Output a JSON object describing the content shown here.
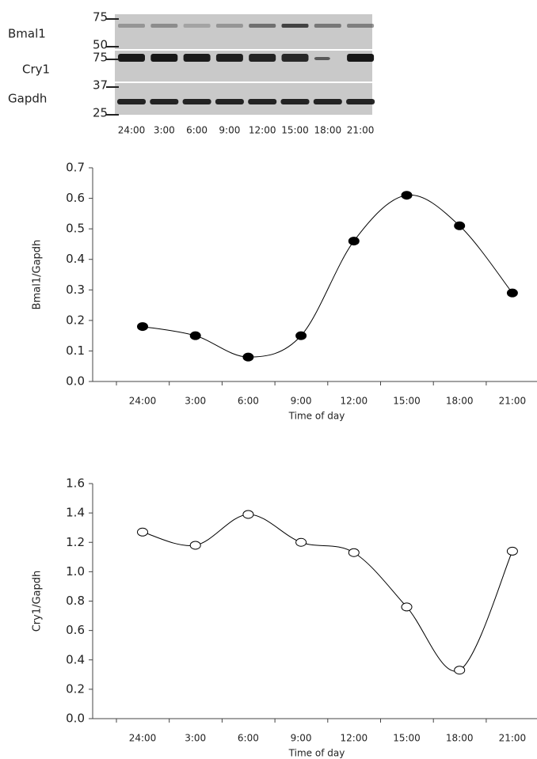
{
  "blot": {
    "proteins": [
      "Bmal1",
      "Cry1",
      "Gapdh"
    ],
    "markers": [
      75,
      50,
      75,
      37,
      25
    ],
    "lanes": [
      "24:00",
      "3:00",
      "6:00",
      "9:00",
      "12:00",
      "15:00",
      "18:00",
      "21:00"
    ]
  },
  "chart_data": [
    {
      "type": "line",
      "y_label": "Bmal1/Gapdh",
      "x_label": "Time of day",
      "categories": [
        "24:00",
        "3:00",
        "6:00",
        "9:00",
        "12:00",
        "15:00",
        "18:00",
        "21:00"
      ],
      "values": [
        0.18,
        0.15,
        0.08,
        0.15,
        0.46,
        0.61,
        0.51,
        0.29
      ],
      "color": "#000000",
      "marker_face": "#000000",
      "ylim": [
        0,
        0.7
      ],
      "yticks": [
        {
          "value": 0,
          "label": "0.0"
        },
        0.1,
        0.2,
        0.3,
        0.4,
        0.5,
        0.6,
        0.7
      ]
    },
    {
      "type": "line",
      "y_label": "Cry1/Gapdh",
      "x_label": "Time of day",
      "categories": [
        "24:00",
        "3:00",
        "6:00",
        "9:00",
        "12:00",
        "15:00",
        "18:00",
        "21:00"
      ],
      "values": [
        1.27,
        1.18,
        1.39,
        1.2,
        1.13,
        0.76,
        0.33,
        1.14
      ],
      "color": "#000000",
      "marker_face": "#ffffff",
      "ylim": [
        0,
        1.6
      ],
      "yticks": [
        {
          "value": 0,
          "label": "0.0"
        },
        0.2,
        0.4,
        0.6,
        0.8,
        {
          "value": 1,
          "label": "1.0"
        },
        1.2,
        1.4,
        1.6
      ]
    }
  ]
}
